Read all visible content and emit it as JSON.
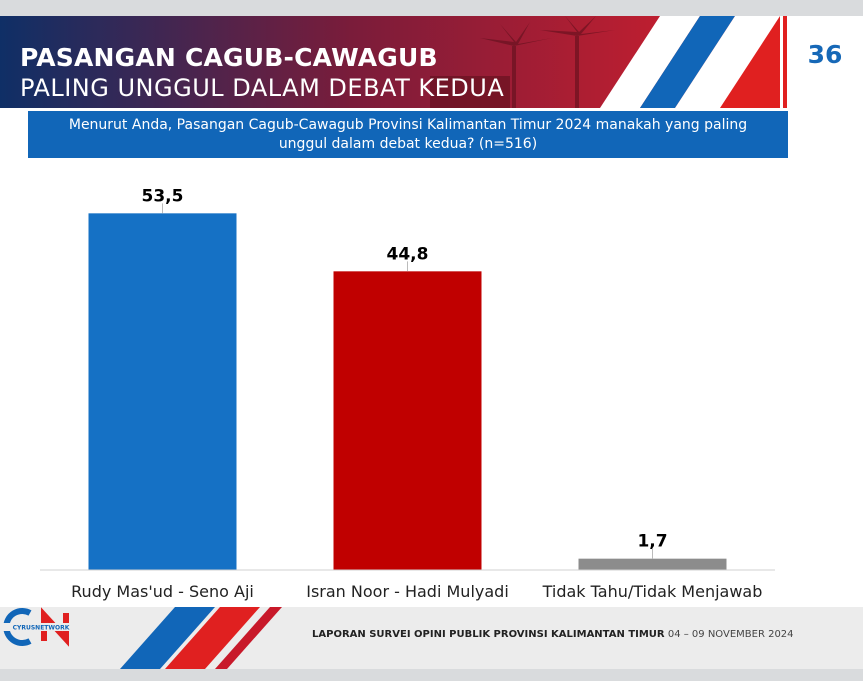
{
  "header": {
    "title_line1": "PASANGAN CAGUB-CAWAGUB",
    "title_line2": "PALING UNGGUL DALAM DEBAT KEDUA",
    "page_number": "36"
  },
  "question": "Menurut Anda, Pasangan Cagub-Cawagub Provinsi Kalimantan Timur 2024 manakah yang paling unggul dalam debat kedua? (n=516)",
  "chart_data": {
    "type": "bar",
    "categories": [
      "Rudy Mas'ud - Seno Aji",
      "Isran Noor - Hadi Mulyadi",
      "Tidak Tahu/Tidak Menjawab"
    ],
    "values": [
      53.5,
      44.8,
      1.7
    ],
    "value_labels": [
      "53,5",
      "44,8",
      "1,7"
    ],
    "colors": [
      "#1571c5",
      "#c00000",
      "#8c8c8c"
    ],
    "ylim": [
      0,
      60
    ],
    "grid": false,
    "legend": "none"
  },
  "footer": {
    "logo_text": "CYRUSNETWORK",
    "report_title": "LAPORAN SURVEI OPINI PUBLIK PROVINSI KALIMANTAN TIMUR",
    "report_date": "04 – 09 NOVEMBER 2024"
  },
  "theme": {
    "primary_blue": "#1166b8",
    "primary_red": "#e02020"
  }
}
